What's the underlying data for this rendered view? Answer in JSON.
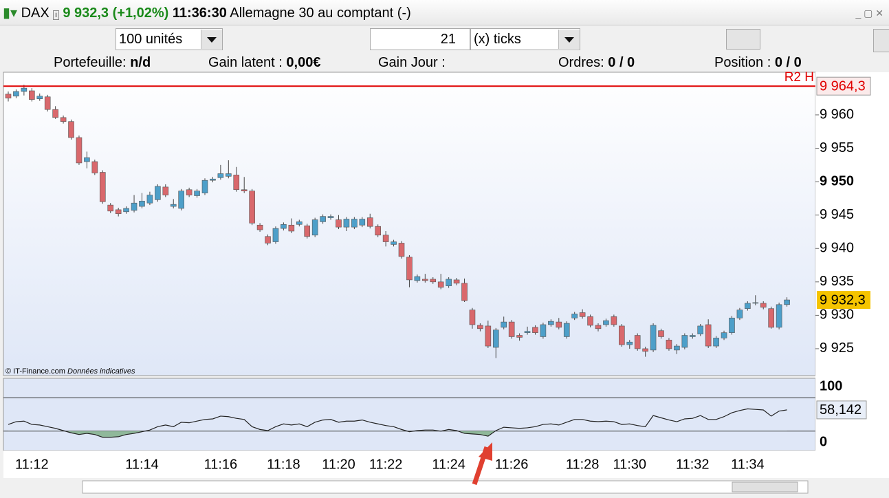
{
  "header": {
    "symbol": "DAX",
    "price": "9 932,3 (+1,02%)",
    "time": "11:36:30",
    "name": "Allemagne 30 au comptant (-)"
  },
  "toolbar": {
    "quantity": "100 unités",
    "ticks_count": "21",
    "ticks_unit": "(x) ticks"
  },
  "info_bar": {
    "portfolio_label": "Portefeuille:",
    "portfolio_value": "n/d",
    "latent_label": "Gain latent :",
    "latent_value": "0,00€",
    "day_label": "Gain Jour :",
    "orders_label": "Ordres:",
    "orders_a": "0",
    "orders_b": "/ 0",
    "position_label": "Position :",
    "position_a": "0",
    "position_b": "/ 0"
  },
  "watermark": {
    "source": "© IT-Finance.com",
    "note": "Données indicatives"
  },
  "chart_data": {
    "type": "candlestick",
    "up_color": "#4d9fc9",
    "down_color": "#d9686c",
    "ylim": [
      9920.98,
      9966.38
    ],
    "yticks": [
      {
        "value": 9925,
        "label": "9 925"
      },
      {
        "value": 9930,
        "label": "9 930"
      },
      {
        "value": 9935,
        "label": "9 935"
      },
      {
        "value": 9940,
        "label": "9 940"
      },
      {
        "value": 9945,
        "label": "9 945"
      },
      {
        "value": 9950,
        "label": "9 950",
        "bold": true
      },
      {
        "value": 9955,
        "label": "9 955"
      },
      {
        "value": 9960,
        "label": "9 960"
      }
    ],
    "hline": {
      "name": "R2 H",
      "value": 9964.3,
      "label": "9 964,3",
      "color": "#e00000"
    },
    "last_price": {
      "value": 9932.3,
      "label": "9 932,3"
    },
    "categories": [
      null,
      null,
      null,
      "11:12",
      null,
      null,
      null,
      null,
      null,
      null,
      null,
      null,
      null,
      null,
      null,
      null,
      null,
      "11:14",
      null,
      null,
      null,
      null,
      null,
      null,
      null,
      null,
      null,
      "11:16",
      null,
      null,
      null,
      null,
      null,
      null,
      null,
      "11:18",
      null,
      null,
      null,
      null,
      null,
      null,
      "11:20",
      null,
      null,
      null,
      null,
      null,
      "11:22",
      null,
      null,
      null,
      null,
      null,
      null,
      null,
      "11:24",
      null,
      null,
      null,
      null,
      null,
      null,
      null,
      "11:26",
      null,
      null,
      null,
      null,
      null,
      null,
      null,
      null,
      "11:28",
      null,
      null,
      null,
      null,
      null,
      "11:30",
      null,
      null,
      null,
      null,
      null,
      null,
      null,
      "11:32",
      null,
      null,
      null,
      null,
      null,
      null,
      "11:34",
      null,
      null,
      null,
      null,
      null
    ],
    "ohlc": [
      [
        9963.1,
        9963.5,
        9962.0,
        9962.5
      ],
      [
        9962.8,
        9963.8,
        9962.5,
        9963.5
      ],
      [
        9963.5,
        9964.5,
        9962.9,
        9964.0
      ],
      [
        9963.6,
        9964.0,
        9962.0,
        9962.3
      ],
      [
        9962.4,
        9963.2,
        9962.1,
        9962.8
      ],
      [
        9962.7,
        9963.0,
        9960.5,
        9960.8
      ],
      [
        9960.8,
        9961.3,
        9959.4,
        9959.6
      ],
      [
        9959.6,
        9959.9,
        9958.7,
        9959.0
      ],
      [
        9959.0,
        9959.3,
        9956.3,
        9956.6
      ],
      [
        9956.6,
        9956.9,
        9952.5,
        9952.8
      ],
      [
        9953.0,
        9954.5,
        9952.0,
        9953.6
      ],
      [
        9953.0,
        9953.3,
        9951.0,
        9951.3
      ],
      [
        9951.4,
        9951.7,
        9946.7,
        9947.0
      ],
      [
        9946.5,
        9946.8,
        9945.3,
        9945.6
      ],
      [
        9945.8,
        9946.1,
        9944.8,
        9945.2
      ],
      [
        9945.5,
        9946.3,
        9945.2,
        9946.0
      ],
      [
        9945.7,
        9948.0,
        9945.4,
        9946.8
      ],
      [
        9946.3,
        9948.3,
        9946.0,
        9947.1
      ],
      [
        9946.8,
        9948.5,
        9946.5,
        9948.0
      ],
      [
        9947.3,
        9949.6,
        9947.0,
        9949.3
      ],
      [
        9949.2,
        9949.6,
        9947.7,
        9948.0
      ],
      [
        9946.3,
        9947.4,
        9946.0,
        9946.6
      ],
      [
        9946.0,
        9948.9,
        9945.7,
        9948.6
      ],
      [
        9948.8,
        9949.1,
        9947.7,
        9948.0
      ],
      [
        9947.9,
        9948.9,
        9947.6,
        9948.6
      ],
      [
        9948.3,
        9950.5,
        9948.0,
        9950.2
      ],
      [
        9950.2,
        9950.7,
        9949.9,
        9950.4
      ],
      [
        9950.6,
        9952.5,
        9950.3,
        9951.2
      ],
      [
        9950.8,
        9953.2,
        9950.5,
        9951.2
      ],
      [
        9951.0,
        9952.2,
        9948.5,
        9948.8
      ],
      [
        9948.8,
        9950.7,
        9948.3,
        9948.6
      ],
      [
        9948.6,
        9948.9,
        9943.5,
        9943.8
      ],
      [
        9943.5,
        9943.8,
        9942.5,
        9942.8
      ],
      [
        9941.8,
        9942.1,
        9940.5,
        9940.8
      ],
      [
        9941.0,
        9943.3,
        9940.7,
        9943.0
      ],
      [
        9943.0,
        9943.9,
        9942.7,
        9943.6
      ],
      [
        9943.5,
        9944.5,
        9942.3,
        9942.6
      ],
      [
        9943.6,
        9944.3,
        9943.3,
        9944.0
      ],
      [
        9943.4,
        9943.7,
        9941.5,
        9941.8
      ],
      [
        9942.0,
        9944.6,
        9941.7,
        9944.3
      ],
      [
        9944.0,
        9945.1,
        9943.7,
        9944.8
      ],
      [
        9944.6,
        9945.1,
        9944.3,
        9944.8
      ],
      [
        9944.3,
        9945.0,
        9942.9,
        9943.2
      ],
      [
        9943.2,
        9944.7,
        9942.6,
        9944.4
      ],
      [
        9943.2,
        9944.7,
        9942.9,
        9944.4
      ],
      [
        9943.5,
        9944.7,
        9943.2,
        9944.4
      ],
      [
        9944.6,
        9945.2,
        9943.0,
        9943.3
      ],
      [
        9943.3,
        9943.6,
        9941.7,
        9942.0
      ],
      [
        9942.0,
        9942.6,
        9940.3,
        9941.0
      ],
      [
        9940.6,
        9941.3,
        9940.3,
        9941.0
      ],
      [
        9940.8,
        9941.1,
        9938.5,
        9938.8
      ],
      [
        9938.7,
        9939.0,
        9934.2,
        9935.3
      ],
      [
        9935.2,
        9936.1,
        9934.9,
        9935.8
      ],
      [
        9935.4,
        9936.2,
        9934.9,
        9935.2
      ],
      [
        9935.4,
        9935.7,
        9934.7,
        9935.0
      ],
      [
        9935.0,
        9936.2,
        9933.9,
        9934.2
      ],
      [
        9934.4,
        9935.7,
        9934.1,
        9935.4
      ],
      [
        9935.3,
        9935.6,
        9934.5,
        9934.8
      ],
      [
        9934.8,
        9935.5,
        9932.0,
        9932.2
      ],
      [
        9930.8,
        9931.1,
        9928.0,
        9928.6
      ],
      [
        9928.5,
        9928.8,
        9927.6,
        9928.0
      ],
      [
        9928.4,
        9929.2,
        9925.1,
        9925.4
      ],
      [
        9925.2,
        9928.1,
        9923.6,
        9927.8
      ],
      [
        9928.2,
        9929.8,
        9927.9,
        9929.0
      ],
      [
        9929.0,
        9929.3,
        9926.5,
        9926.8
      ],
      [
        9927.0,
        9927.3,
        9926.2,
        9926.7
      ],
      [
        9927.4,
        9928.3,
        9927.1,
        9927.6
      ],
      [
        9928.2,
        9928.5,
        9927.1,
        9927.4
      ],
      [
        9926.8,
        9928.9,
        9926.5,
        9928.6
      ],
      [
        9928.6,
        9929.4,
        9928.3,
        9929.1
      ],
      [
        9929.0,
        9929.6,
        9927.9,
        9928.2
      ],
      [
        9926.8,
        9929.1,
        9926.5,
        9928.8
      ],
      [
        9929.6,
        9930.5,
        9929.3,
        9930.2
      ],
      [
        9930.4,
        9930.9,
        9929.5,
        9929.8
      ],
      [
        9929.8,
        9930.1,
        9928.2,
        9928.5
      ],
      [
        9928.5,
        9928.8,
        9927.6,
        9928.0
      ],
      [
        9928.6,
        9929.5,
        9928.3,
        9929.2
      ],
      [
        9929.8,
        9930.1,
        9928.3,
        9928.6
      ],
      [
        9928.4,
        9928.7,
        9925.3,
        9925.6
      ],
      [
        9925.6,
        9926.3,
        9925.0,
        9926.0
      ],
      [
        9927.0,
        9927.3,
        9924.7,
        9925.0
      ],
      [
        9925.0,
        9925.3,
        9923.8,
        9924.6
      ],
      [
        9924.8,
        9928.8,
        9924.5,
        9928.5
      ],
      [
        9927.7,
        9928.0,
        9926.5,
        9926.8
      ],
      [
        9926.3,
        9926.6,
        9924.7,
        9925.0
      ],
      [
        9924.8,
        9925.7,
        9924.2,
        9925.4
      ],
      [
        9925.2,
        9927.3,
        9924.9,
        9927.0
      ],
      [
        9926.8,
        9927.3,
        9926.5,
        9927.0
      ],
      [
        9927.2,
        9928.7,
        9926.9,
        9928.4
      ],
      [
        9928.6,
        9929.4,
        9925.1,
        9925.4
      ],
      [
        9925.4,
        9926.9,
        9925.1,
        9926.6
      ],
      [
        9926.6,
        9927.7,
        9926.3,
        9927.4
      ],
      [
        9927.4,
        9929.9,
        9927.1,
        9929.6
      ],
      [
        9929.6,
        9931.1,
        9929.3,
        9930.8
      ],
      [
        9931.0,
        9932.1,
        9930.7,
        9931.8
      ],
      [
        9931.8,
        9933.0,
        9931.5,
        9931.9
      ],
      [
        9931.8,
        9932.1,
        9930.9,
        9931.2
      ],
      [
        9931.0,
        9931.3,
        9928.0,
        9928.2
      ],
      [
        9928.2,
        9931.9,
        9927.9,
        9931.6
      ],
      [
        9931.6,
        9932.7,
        9931.3,
        9932.3
      ]
    ],
    "oscillator": {
      "type": "line",
      "color": "#222222",
      "fill_color": "#8fb89a",
      "ylim": [
        -14.8,
        114.8
      ],
      "yticks": [
        0,
        100
      ],
      "levels": [
        20,
        80
      ],
      "values": [
        32,
        37,
        38,
        32,
        31,
        28,
        25,
        21,
        17,
        14,
        16,
        14,
        9,
        9,
        10,
        14,
        16,
        19,
        22,
        28,
        31,
        28,
        36,
        35,
        38,
        41,
        42,
        47,
        46,
        43,
        41,
        28,
        23,
        21,
        28,
        33,
        31,
        33,
        28,
        36,
        40,
        41,
        36,
        38,
        38,
        40,
        36,
        33,
        30,
        28,
        23,
        19,
        21,
        22,
        22,
        20,
        23,
        21,
        16,
        15,
        14,
        11,
        21,
        27,
        26,
        25,
        26,
        28,
        32,
        33,
        31,
        36,
        41,
        41,
        38,
        37,
        38,
        37,
        32,
        33,
        30,
        28,
        48,
        44,
        40,
        37,
        42,
        43,
        48,
        41,
        41,
        46,
        53,
        57,
        60,
        59,
        58,
        47,
        56,
        58.142
      ],
      "last_label": "58,142"
    }
  }
}
